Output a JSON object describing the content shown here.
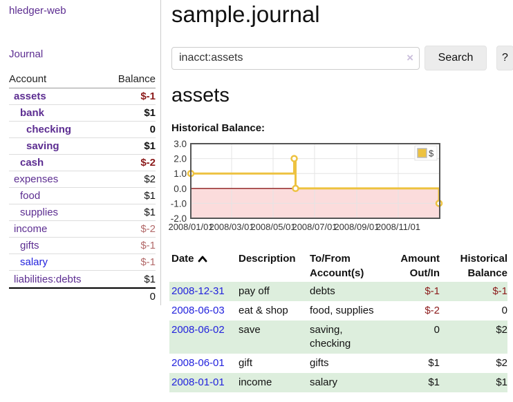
{
  "app": {
    "brand": "hledger-web",
    "nav_journal": "Journal"
  },
  "sidebar": {
    "header": {
      "account": "Account",
      "balance": "Balance"
    },
    "accounts": [
      {
        "name": "assets",
        "level": 1,
        "bold": true,
        "balance": "$-1",
        "balance_class": "neg"
      },
      {
        "name": "bank",
        "level": 2,
        "bold": true,
        "balance": "$1",
        "balance_class": ""
      },
      {
        "name": "checking",
        "level": 3,
        "bold": true,
        "balance": "0",
        "balance_class": ""
      },
      {
        "name": "saving",
        "level": 3,
        "bold": true,
        "balance": "$1",
        "balance_class": ""
      },
      {
        "name": "cash",
        "level": 2,
        "bold": true,
        "balance": "$-2",
        "balance_class": "neg"
      },
      {
        "name": "expenses",
        "level": 1,
        "bold": false,
        "balance": "$2",
        "balance_class": ""
      },
      {
        "name": "food",
        "level": 2,
        "bold": false,
        "balance": "$1",
        "balance_class": ""
      },
      {
        "name": "supplies",
        "level": 2,
        "bold": false,
        "balance": "$1",
        "balance_class": ""
      },
      {
        "name": "income",
        "level": 1,
        "bold": false,
        "balance": "$-2",
        "balance_class": "neg-soft"
      },
      {
        "name": "gifts",
        "level": 2,
        "bold": false,
        "balance": "$-1",
        "balance_class": "neg-soft"
      },
      {
        "name": "salary",
        "level": 2,
        "bold": false,
        "balance": "$-1",
        "balance_class": "neg-soft",
        "link_class": "blue"
      },
      {
        "name": "liabilities:debts",
        "level": 1,
        "bold": false,
        "balance": "$1",
        "balance_class": ""
      }
    ],
    "total": "0"
  },
  "main": {
    "title": "sample.journal",
    "search": {
      "value": "inacct:assets",
      "clear_icon": "×",
      "button": "Search",
      "help_button": "?"
    },
    "account_heading": "assets",
    "chart_label": "Historical Balance:"
  },
  "chart_data": {
    "type": "line",
    "title": "Historical Balance",
    "step": true,
    "series": [
      {
        "name": "$",
        "color": "#edc240",
        "points": [
          [
            "2008-01-01",
            1
          ],
          [
            "2008-06-01",
            2
          ],
          [
            "2008-06-03",
            0
          ],
          [
            "2008-12-31",
            -1
          ]
        ]
      }
    ],
    "x_range": [
      "2008-01-01",
      "2009-01-01"
    ],
    "x_ticks": [
      {
        "date": "2008-01-01",
        "label": "2008/01/01"
      },
      {
        "date": "2008-03-01",
        "label": "2008/03/01"
      },
      {
        "date": "2008-05-01",
        "label": "2008/05/01"
      },
      {
        "date": "2008-07-01",
        "label": "2008/07/01"
      },
      {
        "date": "2008-09-01",
        "label": "2008/09/01"
      },
      {
        "date": "2008-11-01",
        "label": "2008/11/01"
      }
    ],
    "y_ticks": [
      3.0,
      2.0,
      1.0,
      0.0,
      -1.0,
      -2.0
    ],
    "ylim": [
      -2,
      3
    ],
    "legend": "$",
    "legend_position": "top-right",
    "grid": true,
    "negative_fill": "#fbdcdc",
    "zero_line_color": "#8b1a1a",
    "border_color": "#555"
  },
  "register": {
    "columns": [
      "Date",
      "Description",
      "To/From Account(s)",
      "Amount Out/In",
      "Historical Balance"
    ],
    "rows": [
      {
        "date": "2008-12-31",
        "description": "pay off",
        "accounts": "debts",
        "amount": "$-1",
        "balance": "$-1",
        "amount_class": "neg",
        "balance_class": "neg"
      },
      {
        "date": "2008-06-03",
        "description": "eat & shop",
        "accounts": "food, supplies",
        "amount": "$-2",
        "balance": "0",
        "amount_class": "neg",
        "balance_class": ""
      },
      {
        "date": "2008-06-02",
        "description": "save",
        "accounts": "saving, checking",
        "amount": "0",
        "balance": "$2",
        "amount_class": "",
        "balance_class": ""
      },
      {
        "date": "2008-06-01",
        "description": "gift",
        "accounts": "gifts",
        "amount": "$1",
        "balance": "$2",
        "amount_class": "",
        "balance_class": ""
      },
      {
        "date": "2008-01-01",
        "description": "income",
        "accounts": "salary",
        "amount": "$1",
        "balance": "$1",
        "amount_class": "",
        "balance_class": ""
      }
    ]
  }
}
